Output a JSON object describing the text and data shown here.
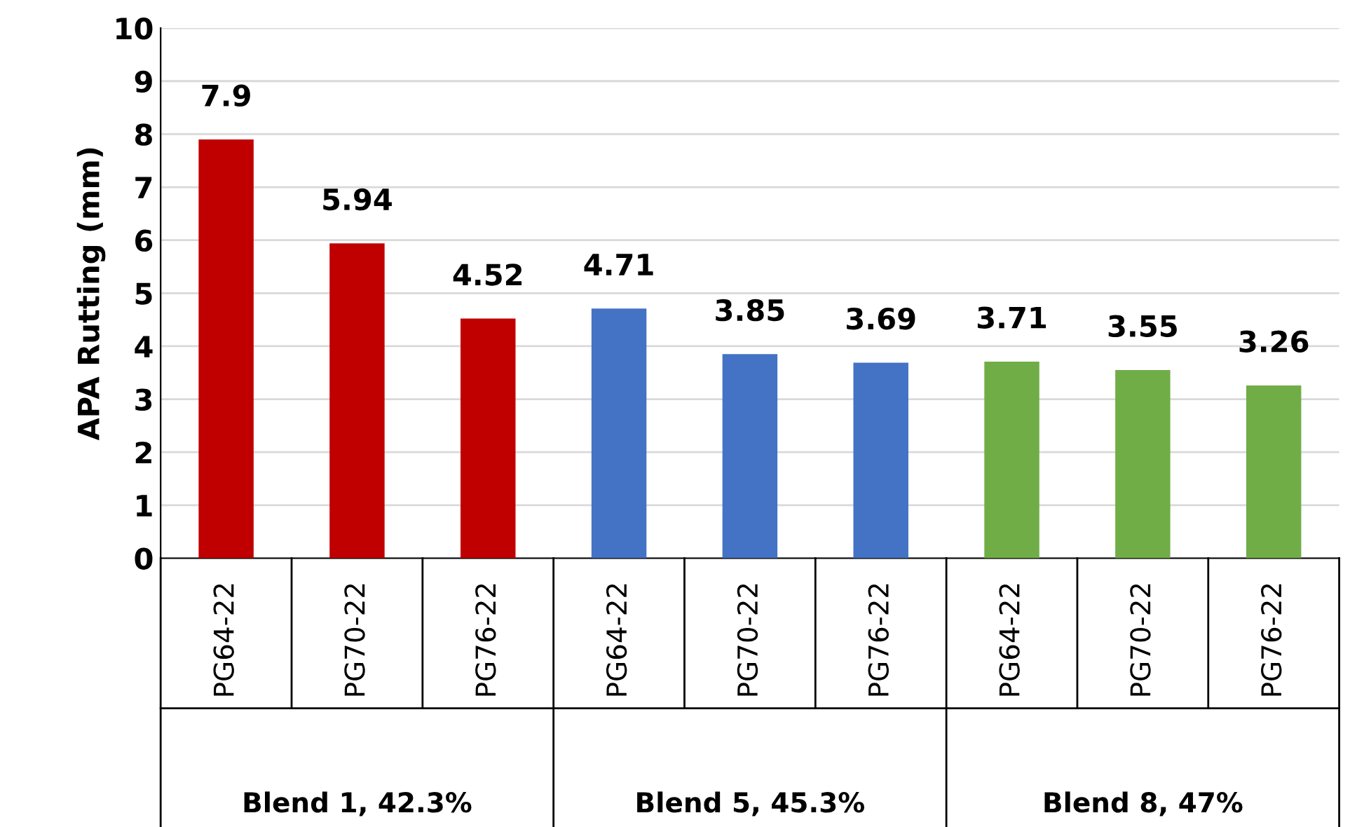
{
  "chart_data": {
    "type": "bar",
    "ylabel": "APA Rutting (mm)",
    "categories": [
      "PG64-22",
      "PG70-22",
      "PG76-22",
      "PG64-22",
      "PG70-22",
      "PG76-22",
      "PG64-22",
      "PG70-22",
      "PG76-22"
    ],
    "values": [
      7.9,
      5.94,
      4.52,
      4.71,
      3.85,
      3.69,
      3.71,
      3.55,
      3.26
    ],
    "colors": [
      "#c00000",
      "#c00000",
      "#c00000",
      "#4472c4",
      "#4472c4",
      "#4472c4",
      "#70ad47",
      "#70ad47",
      "#70ad47"
    ],
    "annotations": [
      "Blend 1, 42.3%",
      "Blend 5, 45.3%",
      "Blend 8, 47%"
    ],
    "ylim": [
      0,
      10
    ],
    "yticks": [
      0,
      1,
      2,
      3,
      4,
      5,
      6,
      7,
      8,
      9,
      10
    ],
    "grid": "y",
    "data_labels": true,
    "legend": false
  }
}
